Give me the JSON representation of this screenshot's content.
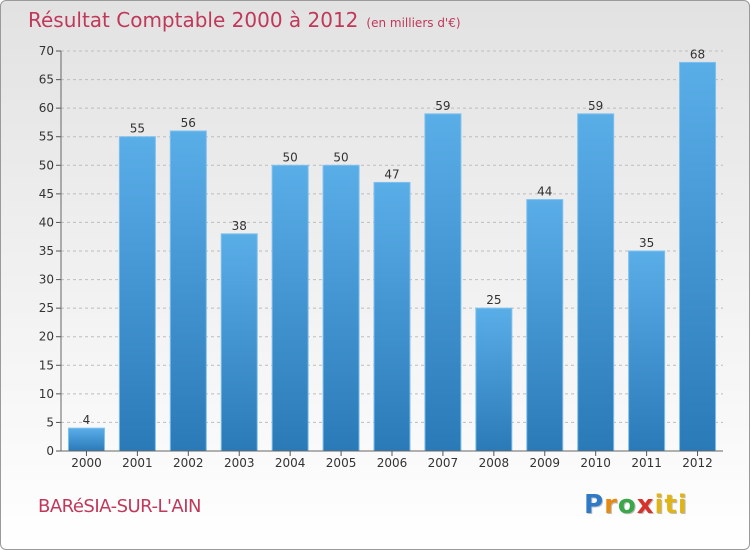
{
  "header": {
    "title": "Résultat Comptable 2000 à 2012",
    "subtitle": "(en milliers d'€)"
  },
  "footer": {
    "commune": "BARéSIA-SUR-L'AIN",
    "logo_parts": [
      "P",
      "r",
      "o",
      "x",
      "iti"
    ]
  },
  "colors": {
    "title": "#c0385a",
    "bar_top": "#5aaee8",
    "bar_bottom": "#2a7ab8"
  },
  "chart_data": {
    "type": "bar",
    "title": "Résultat Comptable 2000 à 2012",
    "subtitle": "(en milliers d'€)",
    "categories": [
      "2000",
      "2001",
      "2002",
      "2003",
      "2004",
      "2005",
      "2006",
      "2007",
      "2008",
      "2009",
      "2010",
      "2011",
      "2012"
    ],
    "values": [
      4,
      55,
      56,
      38,
      50,
      50,
      47,
      59,
      25,
      44,
      59,
      35,
      68
    ],
    "ylim": [
      0,
      70
    ],
    "yticks": [
      0,
      5,
      10,
      15,
      20,
      25,
      30,
      35,
      40,
      45,
      50,
      55,
      60,
      65,
      70
    ],
    "grid": true,
    "data_labels": true
  }
}
